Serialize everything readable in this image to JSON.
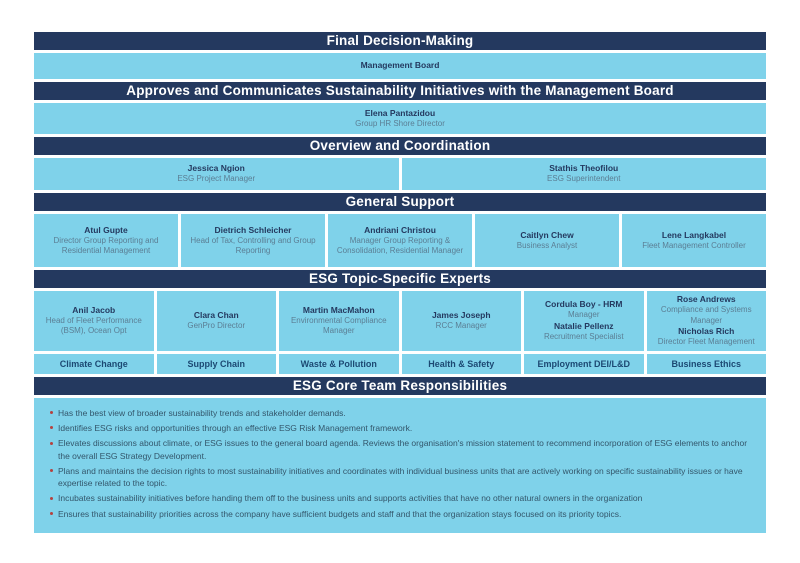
{
  "colors": {
    "header_navy": "#24395f",
    "cell_light_blue": "#7fd2ea",
    "name_text": "#24395f",
    "role_text": "#5b7e94",
    "topic_text": "#1c4973",
    "bullet_dot_red": "#b5413f",
    "bullet_text": "#33566b",
    "background": "#ffffff"
  },
  "sections": [
    {
      "id": "final-decision-making",
      "header": "Final Decision-Making",
      "cells": [
        {
          "lines": [
            {
              "text": "Management Board",
              "style": "name"
            }
          ]
        }
      ]
    },
    {
      "id": "approves-and-communicates",
      "header": "Approves and Communicates Sustainability Initiatives with the Management Board",
      "cells": [
        {
          "lines": [
            {
              "text": "Elena Pantazidou",
              "style": "name"
            },
            {
              "text": "Group HR Shore Director",
              "style": "role"
            }
          ]
        }
      ]
    },
    {
      "id": "overview-and-coordination",
      "header": "Overview and Coordination",
      "cells": [
        {
          "lines": [
            {
              "text": "Jessica Ngion",
              "style": "name"
            },
            {
              "text": "ESG Project Manager",
              "style": "role"
            }
          ]
        },
        {
          "lines": [
            {
              "text": "Stathis Theofilou",
              "style": "name"
            },
            {
              "text": "ESG Superintendent",
              "style": "role"
            }
          ]
        }
      ]
    },
    {
      "id": "general-support",
      "header": "General Support",
      "cells": [
        {
          "lines": [
            {
              "text": "Atul Gupte",
              "style": "name"
            },
            {
              "text": "Director Group Reporting and Residential Management",
              "style": "role"
            }
          ]
        },
        {
          "lines": [
            {
              "text": "Dietrich Schleicher",
              "style": "name"
            },
            {
              "text": "Head of Tax, Controlling and Group Reporting",
              "style": "role"
            }
          ]
        },
        {
          "lines": [
            {
              "text": "Andriani Christou",
              "style": "name"
            },
            {
              "text": "Manager Group Reporting & Consolidation, Residential Manager",
              "style": "role"
            }
          ]
        },
        {
          "lines": [
            {
              "text": "Caitlyn Chew",
              "style": "name"
            },
            {
              "text": "Business Analyst",
              "style": "role"
            }
          ]
        },
        {
          "lines": [
            {
              "text": "Lene Langkabel",
              "style": "name"
            },
            {
              "text": "Fleet Management Controller",
              "style": "role"
            }
          ]
        }
      ]
    },
    {
      "id": "esg-topic-specific-experts",
      "header": "ESG Topic-Specific Experts",
      "cells": [
        {
          "lines": [
            {
              "text": "Anil Jacob",
              "style": "name"
            },
            {
              "text": "Head of Fleet Performance (BSM), Ocean Opt",
              "style": "role"
            }
          ]
        },
        {
          "lines": [
            {
              "text": "Clara Chan",
              "style": "name"
            },
            {
              "text": "GenPro Director",
              "style": "role"
            }
          ]
        },
        {
          "lines": [
            {
              "text": "Martin MacMahon",
              "style": "name"
            },
            {
              "text": "Environmental Compliance Manager",
              "style": "role"
            }
          ]
        },
        {
          "lines": [
            {
              "text": "James Joseph",
              "style": "name"
            },
            {
              "text": "RCC Manager",
              "style": "role"
            }
          ]
        },
        {
          "lines": [
            {
              "text": "Cordula Boy - HRM",
              "style": "name"
            },
            {
              "text": "Manager",
              "style": "role"
            },
            {
              "text": "Natalie Pellenz",
              "style": "name"
            },
            {
              "text": "Recruitment Specialist",
              "style": "role"
            }
          ]
        },
        {
          "lines": [
            {
              "text": "Rose Andrews",
              "style": "name"
            },
            {
              "text": "Compliance and Systems Manager",
              "style": "role"
            },
            {
              "text": "Nicholas Rich",
              "style": "name"
            },
            {
              "text": "Director Fleet Management",
              "style": "role"
            }
          ]
        }
      ],
      "topics": [
        "Climate Change",
        "Supply Chain",
        "Waste & Pollution",
        "Health & Safety",
        "Employment DEI/L&D",
        "Business Ethics"
      ]
    },
    {
      "id": "esg-core-team-responsibilities",
      "header": "ESG Core Team Responsibilities",
      "bullets": [
        "Has the best view of broader sustainability trends and stakeholder demands.",
        "Identifies ESG risks and opportunities through an effective ESG Risk Management framework.",
        "Elevates discussions about climate, or ESG issues to the general board agenda. Reviews the organisation's mission statement to recommend incorporation of ESG elements to anchor the overall ESG Strategy Development.",
        "Plans and maintains the decision rights to most sustainability initiatives and coordinates with individual business units that are actively working on specific sustainability issues or have expertise related to the topic.",
        "Incubates sustainability initiatives before handing them off to the business units and supports activities that have no other natural owners in the organization",
        "Ensures that sustainability priorities across the company have sufficient budgets and staff and that the organization stays focused on its priority topics."
      ]
    }
  ]
}
